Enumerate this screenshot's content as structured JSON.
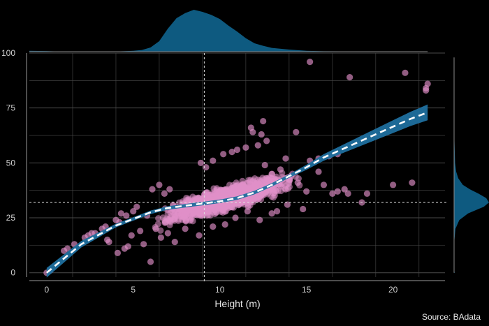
{
  "chart_data": {
    "type": "scatter",
    "title": "",
    "xlabel": "Height (m)",
    "ylabel": "",
    "xlim": [
      -1,
      23
    ],
    "ylim": [
      -2,
      100
    ],
    "x_ticks": [
      0,
      5,
      10,
      15,
      20
    ],
    "y_ticks": [
      0,
      25,
      50,
      75,
      100
    ],
    "grid": true,
    "reference_lines": {
      "x": 9.1,
      "y": 32
    },
    "colors": {
      "points": "#e08fc8",
      "trend": "#ffffff",
      "band": "#1f6f9e",
      "density": "#0e5a80",
      "grid": "#4a4a4a",
      "background": "#000000"
    },
    "series": [
      {
        "points": [
          [
            0,
            0
          ],
          [
            0.2,
            1
          ],
          [
            1.0,
            10
          ],
          [
            1.2,
            11
          ],
          [
            1.6,
            13
          ],
          [
            2.2,
            16
          ],
          [
            2.4,
            17
          ],
          [
            2.6,
            18
          ],
          [
            2.8,
            18
          ],
          [
            3.2,
            20
          ],
          [
            3.4,
            21
          ],
          [
            4.0,
            24
          ],
          [
            4.2,
            23
          ],
          [
            3.5,
            15
          ],
          [
            3.6,
            14
          ],
          [
            4.1,
            9
          ],
          [
            4.5,
            11
          ],
          [
            4.7,
            12
          ],
          [
            4.3,
            27
          ],
          [
            4.6,
            26
          ],
          [
            5.0,
            28
          ],
          [
            5.2,
            30
          ],
          [
            4.9,
            17
          ],
          [
            5.4,
            19
          ],
          [
            5.6,
            13
          ],
          [
            6.0,
            5
          ],
          [
            14.4,
            64
          ],
          [
            15.2,
            96
          ],
          [
            17.5,
            89
          ],
          [
            20.7,
            91
          ],
          [
            22.0,
            86
          ],
          [
            21.9,
            84
          ],
          [
            21.9,
            83
          ],
          [
            20.0,
            40
          ],
          [
            21.1,
            41
          ],
          [
            18.5,
            36
          ],
          [
            18.2,
            32
          ],
          [
            17.4,
            36
          ],
          [
            17.2,
            38
          ],
          [
            16.8,
            37
          ],
          [
            16.5,
            36
          ],
          [
            16.0,
            40
          ],
          [
            15.7,
            46
          ],
          [
            15.2,
            51
          ],
          [
            15.7,
            52
          ],
          [
            16.3,
            53
          ],
          [
            16.8,
            54
          ],
          [
            14.5,
            41
          ],
          [
            15.0,
            37
          ],
          [
            14.8,
            29
          ],
          [
            13.9,
            31
          ],
          [
            13.3,
            28
          ],
          [
            11.8,
            66
          ],
          [
            12.5,
            69
          ],
          [
            12.7,
            60
          ],
          [
            12.2,
            58
          ],
          [
            11.5,
            57
          ],
          [
            11.0,
            56
          ],
          [
            10.7,
            55
          ],
          [
            11.9,
            64
          ],
          [
            12.4,
            63
          ],
          [
            10.2,
            54
          ],
          [
            9.6,
            51
          ],
          [
            8.9,
            50
          ],
          [
            9.2,
            48
          ],
          [
            6.8,
            36
          ],
          [
            6.5,
            40
          ],
          [
            7.1,
            38
          ],
          [
            6.1,
            38
          ],
          [
            5.8,
            26
          ],
          [
            6.3,
            20
          ],
          [
            6.6,
            16
          ],
          [
            7.4,
            14
          ],
          [
            7.0,
            18
          ],
          [
            8.0,
            20
          ],
          [
            8.8,
            17
          ],
          [
            9.6,
            21
          ],
          [
            10.3,
            22
          ],
          [
            10.9,
            25
          ],
          [
            11.6,
            28
          ],
          [
            12.3,
            24
          ],
          [
            13.0,
            27
          ],
          [
            13.8,
            38
          ],
          [
            14.1,
            44
          ],
          [
            13.5,
            47
          ],
          [
            13.0,
            45
          ],
          [
            12.6,
            49
          ],
          [
            13.8,
            52
          ]
        ],
        "cloud": {
          "x_range": [
            5.8,
            15.0
          ],
          "y_center_at_x6": 24,
          "y_slope_per_m": 2.2,
          "y_spread": 7
        }
      }
    ],
    "trend_line": [
      [
        0,
        0
      ],
      [
        2,
        13
      ],
      [
        4,
        21.5
      ],
      [
        5,
        24.5
      ],
      [
        6,
        27.5
      ],
      [
        7,
        29.5
      ],
      [
        8,
        30.5
      ],
      [
        9,
        31.5
      ],
      [
        10,
        32.5
      ],
      [
        11,
        34
      ],
      [
        12,
        36.5
      ],
      [
        13,
        40
      ],
      [
        14,
        44
      ],
      [
        15,
        48
      ],
      [
        16,
        52.5
      ],
      [
        17,
        56
      ],
      [
        18,
        59.5
      ],
      [
        19,
        63
      ],
      [
        20,
        66.5
      ],
      [
        21,
        70
      ],
      [
        22,
        73
      ]
    ],
    "x_density": [
      [
        -1,
        2
      ],
      [
        0,
        1.5
      ],
      [
        1,
        0
      ],
      [
        3,
        0
      ],
      [
        4,
        0.5
      ],
      [
        5,
        2
      ],
      [
        5.5,
        4
      ],
      [
        6,
        10
      ],
      [
        6.5,
        25
      ],
      [
        7,
        55
      ],
      [
        7.5,
        80
      ],
      [
        8,
        92
      ],
      [
        8.5,
        100
      ],
      [
        9,
        95
      ],
      [
        9.5,
        88
      ],
      [
        10,
        78
      ],
      [
        10.5,
        62
      ],
      [
        11,
        48
      ],
      [
        11.5,
        32
      ],
      [
        12,
        20
      ],
      [
        12.5,
        14
      ],
      [
        13,
        9
      ],
      [
        14,
        5
      ],
      [
        15,
        2
      ],
      [
        16,
        1
      ],
      [
        18,
        0.5
      ],
      [
        22,
        0
      ]
    ],
    "y_density": [
      [
        0,
        2
      ],
      [
        1,
        0
      ],
      [
        5,
        0
      ],
      [
        10,
        0.5
      ],
      [
        15,
        1
      ],
      [
        20,
        4
      ],
      [
        24,
        15
      ],
      [
        27,
        40
      ],
      [
        29,
        70
      ],
      [
        30,
        85
      ],
      [
        32,
        100
      ],
      [
        34,
        92
      ],
      [
        36,
        70
      ],
      [
        38,
        45
      ],
      [
        40,
        25
      ],
      [
        43,
        12
      ],
      [
        46,
        6
      ],
      [
        50,
        3
      ],
      [
        60,
        1
      ],
      [
        70,
        0.5
      ],
      [
        80,
        0.5
      ],
      [
        90,
        0.5
      ],
      [
        96,
        0.5
      ]
    ]
  },
  "labels": {
    "source": "Source: BAdata"
  }
}
